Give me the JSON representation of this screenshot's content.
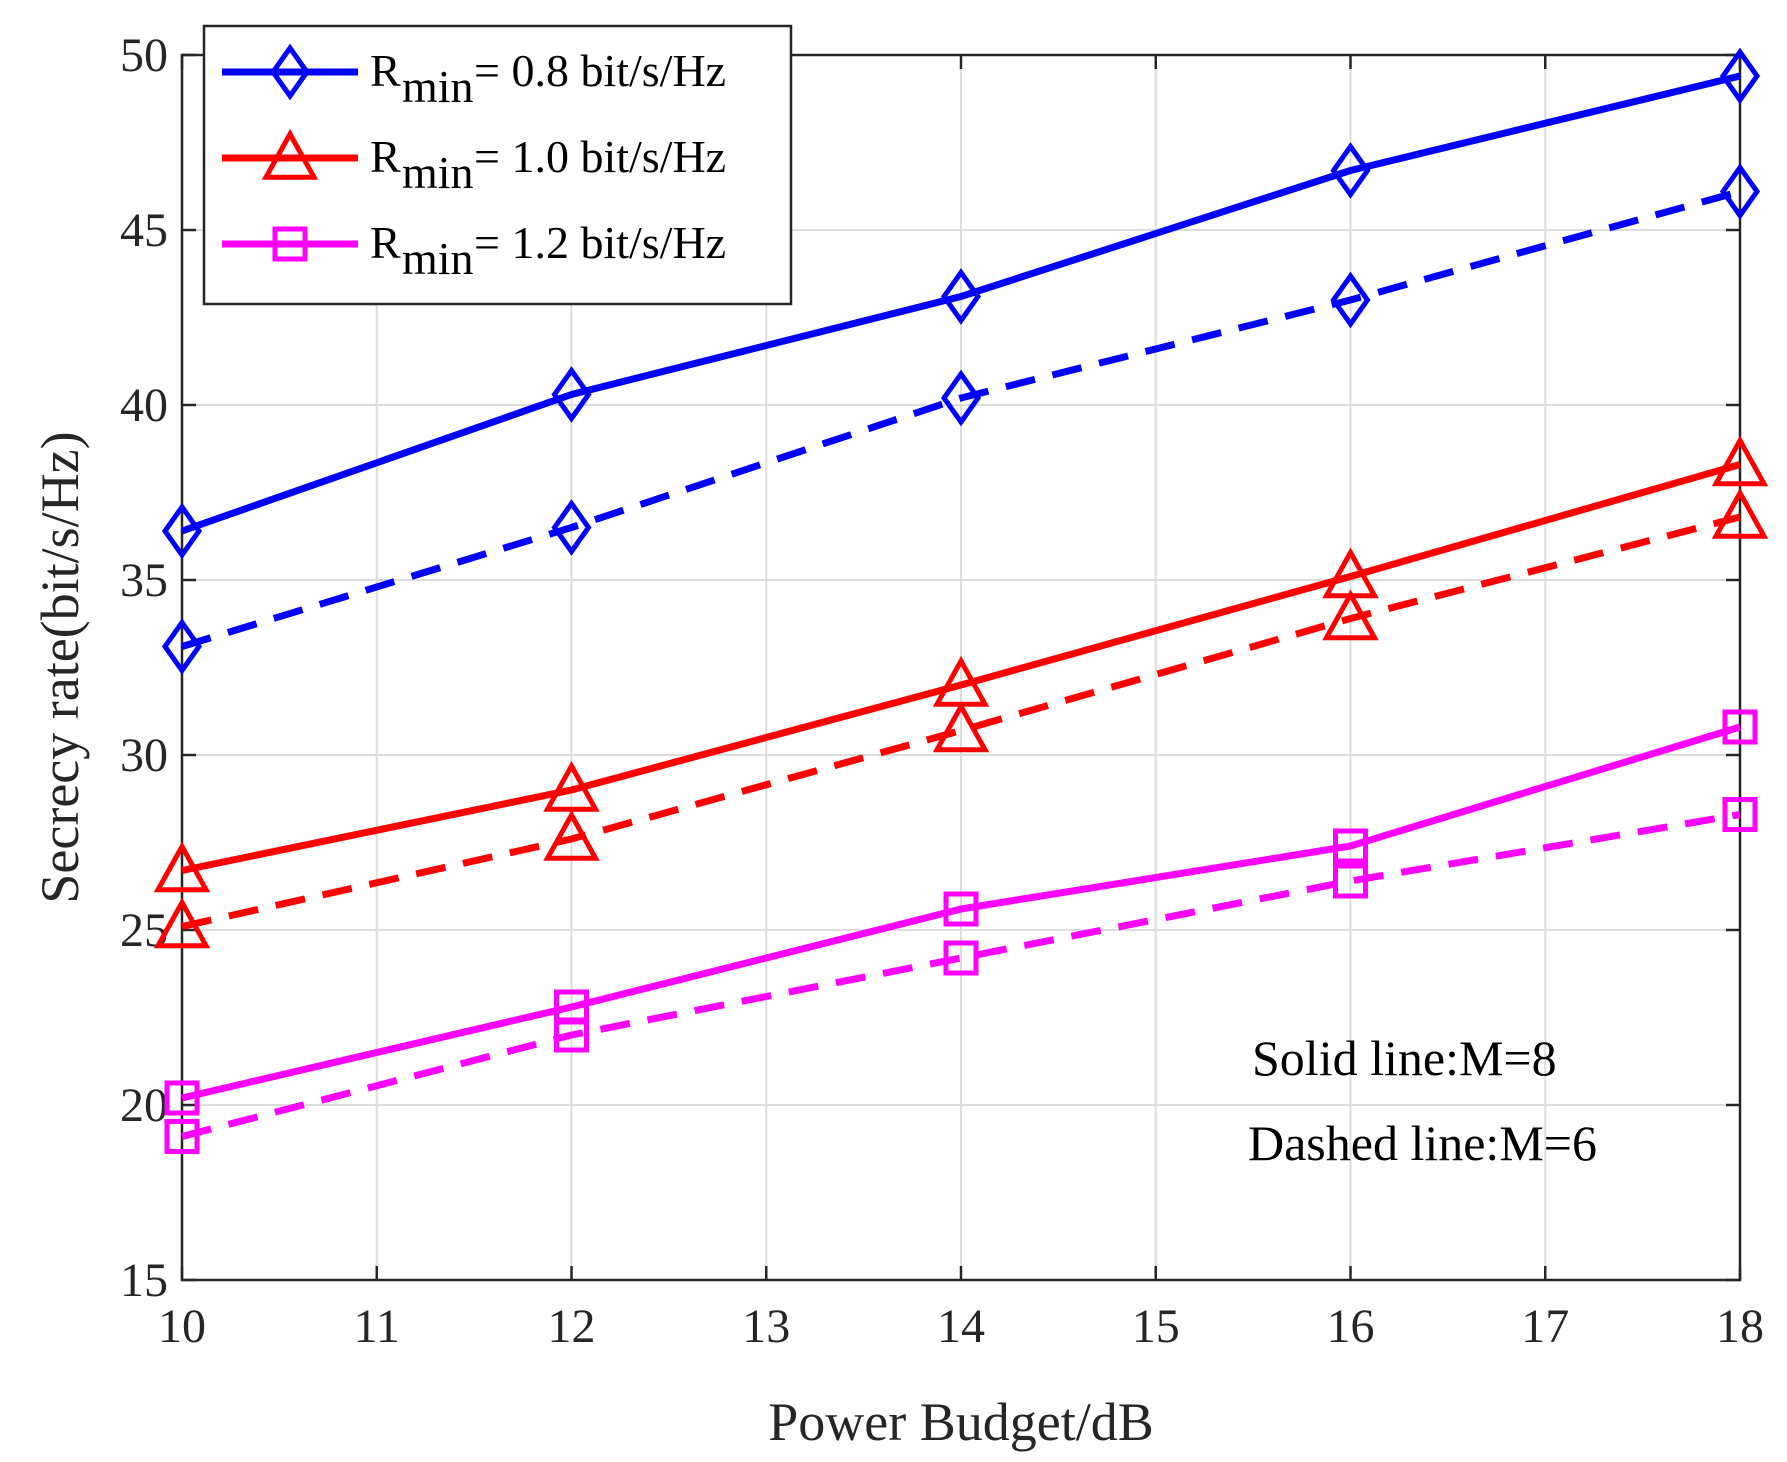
{
  "chart_data": {
    "type": "line",
    "title": "",
    "xlabel": "Power Budget/dB",
    "ylabel": "Secrecy rate(bit/s/Hz)",
    "xlim": [
      10,
      18
    ],
    "ylim": [
      15,
      50
    ],
    "xticks": [
      "10",
      "11",
      "12",
      "13",
      "14",
      "15",
      "16",
      "17",
      "18"
    ],
    "yticks": [
      "15",
      "20",
      "25",
      "30",
      "35",
      "40",
      "45",
      "50"
    ],
    "grid": true,
    "x": [
      10,
      12,
      14,
      16,
      18
    ],
    "series": [
      {
        "name": "R_min = 0.8 bit/s/Hz, M=8",
        "color": "#0000ff",
        "marker": "diamond",
        "dashed": false,
        "values": [
          36.4,
          40.3,
          43.1,
          46.7,
          49.4
        ]
      },
      {
        "name": "R_min = 0.8 bit/s/Hz, M=6",
        "color": "#0000ff",
        "marker": "diamond",
        "dashed": true,
        "values": [
          33.1,
          36.5,
          40.2,
          43.0,
          46.1
        ]
      },
      {
        "name": "R_min = 1.0 bit/s/Hz, M=8",
        "color": "#ff0000",
        "marker": "triangle",
        "dashed": false,
        "values": [
          26.7,
          29.0,
          32.0,
          35.1,
          38.3
        ]
      },
      {
        "name": "R_min = 1.0 bit/s/Hz, M=6",
        "color": "#ff0000",
        "marker": "triangle",
        "dashed": true,
        "values": [
          25.1,
          27.6,
          30.7,
          33.9,
          36.8
        ]
      },
      {
        "name": "R_min = 1.2 bit/s/Hz, M=8",
        "color": "#ff00ff",
        "marker": "square",
        "dashed": false,
        "values": [
          20.2,
          22.8,
          25.6,
          27.4,
          30.8
        ]
      },
      {
        "name": "R_min = 1.2 bit/s/Hz, M=6",
        "color": "#ff00ff",
        "marker": "square",
        "dashed": true,
        "values": [
          19.1,
          22.0,
          24.2,
          26.4,
          28.3
        ]
      }
    ],
    "legend": {
      "position": "top-left",
      "entries": [
        {
          "main": "R",
          "sub": "min",
          "rest": " = 0.8 bit/s/Hz",
          "color": "#0000ff",
          "marker": "diamond"
        },
        {
          "main": "R",
          "sub": "min",
          "rest": " = 1.0 bit/s/Hz",
          "color": "#ff0000",
          "marker": "triangle"
        },
        {
          "main": "R",
          "sub": "min",
          "rest": " = 1.2 bit/s/Hz",
          "color": "#ff00ff",
          "marker": "square"
        }
      ]
    },
    "annotations": [
      "Solid line:M=8",
      "Dashed line:M=6"
    ]
  }
}
